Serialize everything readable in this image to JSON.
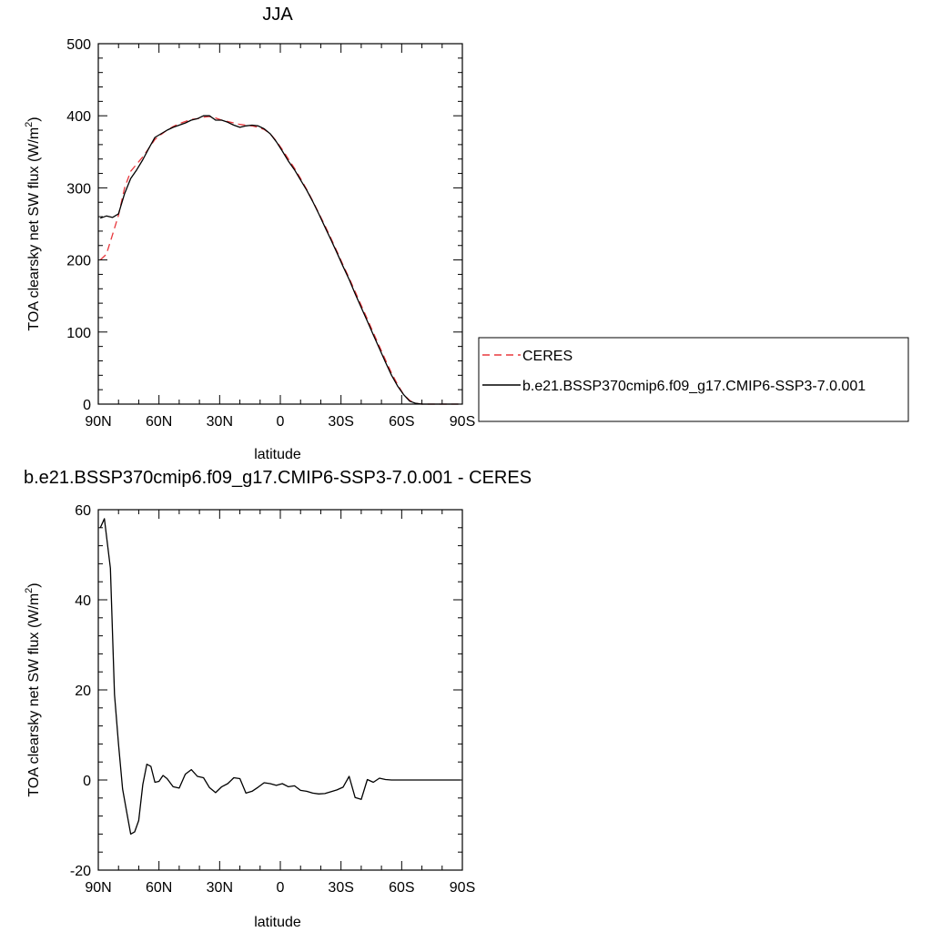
{
  "chart_data": [
    {
      "type": "line",
      "title": "JJA",
      "xlabel": "latitude",
      "ylabel": "TOA clearsky net SW flux (W/m",
      "ylabel_sup": "2",
      "ylabel_end": ")",
      "xlim": [
        90,
        -90
      ],
      "ylim": [
        0,
        500
      ],
      "x_ticks": [
        90,
        60,
        30,
        0,
        -30,
        -60,
        -90
      ],
      "x_tick_labels": [
        "90N",
        "60N",
        "30N",
        "0",
        "30S",
        "60S",
        "90S"
      ],
      "y_ticks": [
        0,
        100,
        200,
        300,
        400,
        500
      ],
      "y_tick_labels": [
        "0",
        "100",
        "200",
        "300",
        "400",
        "500"
      ],
      "grid": false,
      "legend_position": "right",
      "series": [
        {
          "name": "CERES",
          "color": "#e8383d",
          "dash": "dashed",
          "x": [
            89,
            86,
            83,
            80,
            77,
            74,
            71,
            68,
            65,
            62,
            59,
            56,
            53,
            50,
            47,
            44,
            41,
            38,
            35,
            32,
            29,
            26,
            23,
            20,
            17,
            14,
            11,
            8,
            5,
            2,
            -1,
            -4,
            -7,
            -10,
            -13,
            -16,
            -19,
            -22,
            -25,
            -28,
            -31,
            -34,
            -37,
            -40,
            -43,
            -46,
            -49,
            -52,
            -55,
            -58,
            -61,
            -64,
            -67,
            -70,
            -73,
            -76,
            -79,
            -82,
            -85,
            -88
          ],
          "y": [
            200,
            208,
            235,
            262,
            300,
            323,
            333,
            343,
            355,
            367,
            374,
            380,
            385,
            389,
            392,
            395,
            396,
            398,
            399,
            397,
            394,
            392,
            390,
            388,
            387,
            386,
            384,
            381,
            375,
            365,
            353,
            340,
            327,
            313,
            298,
            282,
            265,
            248,
            230,
            212,
            193,
            175,
            156,
            137,
            118,
            99,
            80,
            61,
            43,
            27,
            13,
            5,
            1,
            0,
            0,
            0,
            0,
            0,
            0,
            0
          ]
        },
        {
          "name": "b.e21.BSSP370cmip6.f09_g17.CMIP6-SSP3-7.0.001",
          "color": "#000000",
          "dash": "solid",
          "x": [
            89,
            86,
            83,
            80,
            77,
            74,
            71,
            68,
            65,
            62,
            59,
            56,
            53,
            50,
            47,
            44,
            41,
            38,
            35,
            32,
            29,
            26,
            23,
            20,
            17,
            14,
            11,
            8,
            5,
            2,
            -1,
            -4,
            -7,
            -10,
            -13,
            -16,
            -19,
            -22,
            -25,
            -28,
            -31,
            -34,
            -37,
            -40,
            -43,
            -46,
            -49,
            -52,
            -55,
            -58,
            -61,
            -64,
            -67,
            -70,
            -73,
            -76,
            -79,
            -82,
            -85,
            -88
          ],
          "y": [
            258,
            261,
            259,
            264,
            292,
            313,
            325,
            339,
            355,
            370,
            375,
            380,
            384,
            387,
            390,
            394,
            396,
            400,
            400,
            394,
            394,
            391,
            387,
            384,
            386,
            387,
            386,
            382,
            375,
            364,
            351,
            337,
            325,
            311,
            297,
            281,
            264,
            246,
            228,
            210,
            191,
            173,
            153,
            134,
            115,
            96,
            77,
            58,
            40,
            25,
            13,
            4,
            1,
            0,
            0,
            0,
            0,
            0,
            0,
            0
          ]
        }
      ]
    },
    {
      "type": "line",
      "title": "b.e21.BSSP370cmip6.f09_g17.CMIP6-SSP3-7.0.001 - CERES",
      "xlabel": "latitude",
      "ylabel": "TOA clearsky net SW flux (W/m",
      "ylabel_sup": "2",
      "ylabel_end": ")",
      "xlim": [
        90,
        -90
      ],
      "ylim": [
        -20,
        60
      ],
      "x_ticks": [
        90,
        60,
        30,
        0,
        -30,
        -60,
        -90
      ],
      "x_tick_labels": [
        "90N",
        "60N",
        "30N",
        "0",
        "30S",
        "60S",
        "90S"
      ],
      "y_ticks": [
        -20,
        0,
        20,
        40,
        60
      ],
      "y_tick_labels": [
        "-20",
        "0",
        "20",
        "40",
        "60"
      ],
      "grid": false,
      "series": [
        {
          "color": "#000000",
          "dash": "solid",
          "x": [
            89,
            87,
            84,
            82,
            80,
            78,
            76,
            74,
            72,
            70,
            68,
            66,
            64,
            62,
            60,
            58,
            56,
            53,
            50,
            47,
            44,
            41,
            38,
            35,
            32,
            29,
            26,
            23,
            20,
            17,
            14,
            11,
            8,
            5,
            2,
            -1,
            -4,
            -7,
            -10,
            -13,
            -16,
            -19,
            -22,
            -25,
            -28,
            -31,
            -34,
            -37,
            -40,
            -43,
            -46,
            -49,
            -52,
            -55,
            -58,
            -60,
            -62,
            -65,
            -67,
            -70,
            -72,
            -75,
            -78,
            -81,
            -84,
            -87,
            -89
          ],
          "y": [
            56,
            58,
            47,
            19,
            8,
            -2,
            -7,
            -12,
            -11.5,
            -9,
            -1,
            3.5,
            3,
            -0.5,
            -0.3,
            1,
            0.3,
            -1.5,
            -1.8,
            1.3,
            2.3,
            0.8,
            0.5,
            -1.7,
            -2.8,
            -1.5,
            -0.8,
            0.5,
            0.3,
            -2.9,
            -2.5,
            -1.6,
            -0.6,
            -0.8,
            -1.2,
            -0.8,
            -1.5,
            -1.3,
            -2.3,
            -2.5,
            -2.9,
            -3.1,
            -3.0,
            -2.6,
            -2.2,
            -1.6,
            0.8,
            -3.9,
            -4.3,
            0.1,
            -0.5,
            0.4,
            0.1,
            0,
            0,
            0,
            0,
            0,
            0,
            0,
            0,
            0,
            0,
            0,
            0,
            0,
            0
          ]
        }
      ]
    }
  ]
}
